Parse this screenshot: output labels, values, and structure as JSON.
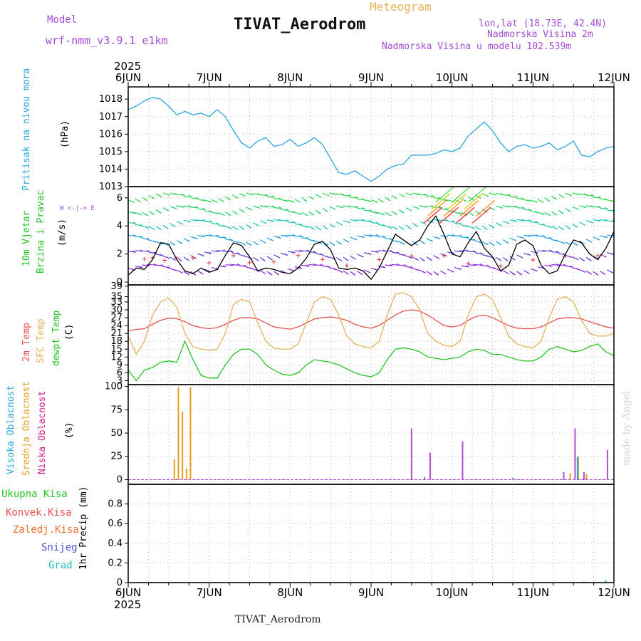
{
  "header": {
    "meteogram": "Meteogram",
    "model_label": "Model",
    "model_name": "wrf-nmm_v3.9.1 e1km",
    "station": "TIVAT_Aerodrom",
    "lonlat": "lon,lat (18.73E, 42.4N)",
    "elev": "Nadmorska Visina 2m",
    "model_elev": "Nadmorska Visina u modelu 102.539m",
    "footer_station": "TIVAT_Aerodrom",
    "credit": "made by Angel"
  },
  "time_axis": {
    "year": "2025",
    "labels": [
      "6JUN",
      "7JUN",
      "8JUN",
      "9JUN",
      "10JUN",
      "11JUN",
      "12JUN"
    ]
  },
  "panels": {
    "pressure": {
      "label": "Pritisak na nivou mora",
      "unit": "(hPa)"
    },
    "wind": {
      "label1": "10m Vjetar",
      "label2": "Brzina i Pravac",
      "unit": "(m/s)",
      "compass": "W <-|-> E"
    },
    "temp": {
      "label1": "2m Temp",
      "label2": "SFC Temp",
      "label3": "dewpt Temp",
      "unit": "(C)"
    },
    "cloud": {
      "label1": "Visoka Oblacnost",
      "label2": "Srednja Oblacnost",
      "label3": "Niska Oblacnost",
      "unit": "(%)"
    },
    "precip": {
      "legend": [
        "Ukupna Kisa",
        "Konvek.Kisa",
        "Zaledj.Kisa",
        "Snijeg",
        "Grad"
      ],
      "unit": "1hr Precip (mm)"
    }
  },
  "chart_data": [
    {
      "type": "line",
      "title": "Pritisak na nivou mora",
      "ylabel": "(hPa)",
      "x_days": [
        0,
        0.1,
        0.2,
        0.3,
        0.4,
        0.5,
        0.6,
        0.7,
        0.8,
        0.9,
        1.0,
        1.1,
        1.2,
        1.3,
        1.4,
        1.5,
        1.6,
        1.7,
        1.8,
        1.9,
        2.0,
        2.1,
        2.2,
        2.3,
        2.4,
        2.5,
        2.6,
        2.7,
        2.8,
        2.9,
        3.0,
        3.1,
        3.2,
        3.3,
        3.4,
        3.5,
        3.6,
        3.7,
        3.8,
        3.9,
        4.0,
        4.1,
        4.2,
        4.3,
        4.4,
        4.5,
        4.6,
        4.7,
        4.8,
        4.9,
        5.0,
        5.1,
        5.2,
        5.3,
        5.4,
        5.5,
        5.6,
        5.7,
        5.8,
        5.9,
        6.0
      ],
      "values": [
        1017.4,
        1017.6,
        1017.9,
        1018.1,
        1018.0,
        1017.6,
        1017.1,
        1017.3,
        1017.1,
        1017.2,
        1017.0,
        1017.4,
        1017.0,
        1016.2,
        1015.5,
        1015.2,
        1015.6,
        1015.8,
        1015.3,
        1015.4,
        1015.7,
        1015.3,
        1015.5,
        1015.8,
        1015.4,
        1014.6,
        1013.8,
        1013.7,
        1013.9,
        1013.6,
        1013.3,
        1013.6,
        1014.0,
        1014.2,
        1014.3,
        1014.8,
        1014.8,
        1014.8,
        1014.9,
        1015.1,
        1015.0,
        1015.2,
        1015.9,
        1016.3,
        1016.7,
        1016.2,
        1015.5,
        1015.0,
        1015.3,
        1015.4,
        1015.2,
        1015.3,
        1015.5,
        1015.1,
        1015.3,
        1015.6,
        1014.8,
        1014.7,
        1015.0,
        1015.2,
        1015.3
      ],
      "color": "#2aa6dc",
      "ylim": [
        1013,
        1018.7
      ],
      "yticks": [
        1013,
        1014,
        1015,
        1016,
        1017,
        1018
      ]
    },
    {
      "type": "line",
      "title": "10m Vjetar Brzina i Pravac",
      "ylabel": "(m/s)",
      "x_days": [
        0,
        0.1,
        0.2,
        0.3,
        0.4,
        0.5,
        0.6,
        0.7,
        0.8,
        0.9,
        1.0,
        1.1,
        1.2,
        1.3,
        1.4,
        1.5,
        1.6,
        1.7,
        1.8,
        1.9,
        2.0,
        2.1,
        2.2,
        2.3,
        2.4,
        2.5,
        2.6,
        2.7,
        2.8,
        2.9,
        3.0,
        3.1,
        3.2,
        3.3,
        3.4,
        3.5,
        3.6,
        3.7,
        3.8,
        3.9,
        4.0,
        4.1,
        4.2,
        4.3,
        4.4,
        4.5,
        4.6,
        4.7,
        4.8,
        4.9,
        5.0,
        5.1,
        5.2,
        5.3,
        5.4,
        5.5,
        5.6,
        5.7,
        5.8,
        5.9,
        6.0
      ],
      "values": [
        0.5,
        1.0,
        0.9,
        1.6,
        2.8,
        2.7,
        1.6,
        0.8,
        0.6,
        1.0,
        0.7,
        0.9,
        1.9,
        2.8,
        2.6,
        1.8,
        0.8,
        1.0,
        0.9,
        0.7,
        0.6,
        1.0,
        1.7,
        2.7,
        2.9,
        2.3,
        1.0,
        0.9,
        1.0,
        0.8,
        0.2,
        1.0,
        2.2,
        3.4,
        3.0,
        2.6,
        3.0,
        4.0,
        4.7,
        3.4,
        2.0,
        1.8,
        2.8,
        3.6,
        2.4,
        1.8,
        0.8,
        1.2,
        2.7,
        3.0,
        2.6,
        1.2,
        0.6,
        0.8,
        2.0,
        3.0,
        2.8,
        2.0,
        1.6,
        2.4,
        3.6
      ],
      "color": "#000000",
      "ylim": [
        -0.2,
        6.8
      ],
      "yticks": [
        0,
        2,
        4,
        6
      ]
    },
    {
      "type": "line",
      "title": "2m Temp / SFC Temp / dewpt Temp",
      "ylabel": "(C)",
      "x_days": [
        0,
        0.1,
        0.2,
        0.3,
        0.4,
        0.5,
        0.6,
        0.7,
        0.8,
        0.9,
        1.0,
        1.1,
        1.2,
        1.3,
        1.4,
        1.5,
        1.6,
        1.7,
        1.8,
        1.9,
        2.0,
        2.1,
        2.2,
        2.3,
        2.4,
        2.5,
        2.6,
        2.7,
        2.8,
        2.9,
        3.0,
        3.1,
        3.2,
        3.3,
        3.4,
        3.5,
        3.6,
        3.7,
        3.8,
        3.9,
        4.0,
        4.1,
        4.2,
        4.3,
        4.4,
        4.5,
        4.6,
        4.7,
        4.8,
        4.9,
        5.0,
        5.1,
        5.2,
        5.3,
        5.4,
        5.5,
        5.6,
        5.7,
        5.8,
        5.9,
        6.0
      ],
      "series": [
        {
          "name": "2m Temp",
          "color": "#e85050",
          "values": [
            22,
            22.5,
            22.8,
            24.5,
            26,
            26.8,
            26.6,
            25.5,
            24,
            23.2,
            22.8,
            23.2,
            24.5,
            26,
            27,
            27,
            26.5,
            25,
            23.5,
            23,
            22.6,
            23.5,
            25,
            26.5,
            27,
            27.3,
            26.8,
            26,
            24.5,
            23.5,
            23,
            24,
            26,
            28,
            29.5,
            30,
            29.5,
            28,
            26,
            24,
            23.5,
            24,
            26,
            27.5,
            28,
            27,
            25.5,
            24,
            23,
            22.8,
            22.8,
            23.5,
            25,
            26.5,
            27,
            27,
            26.5,
            25.5,
            24.5,
            23.5,
            23
          ]
        },
        {
          "name": "SFC Temp",
          "color": "#e6b25a",
          "values": [
            20,
            13,
            18,
            28,
            33,
            34.5,
            31,
            21,
            16,
            15,
            14.5,
            15,
            21,
            32,
            34,
            33,
            25,
            18,
            15.5,
            15,
            15,
            17,
            25,
            33,
            35,
            34,
            28,
            20,
            17,
            16,
            15.5,
            18,
            28,
            36,
            36.5,
            35,
            30,
            21,
            18,
            16.5,
            16,
            18,
            28,
            35,
            36,
            34,
            27,
            20,
            17,
            16,
            15.5,
            18,
            27,
            34,
            35,
            33,
            26,
            21,
            20,
            20,
            21
          ]
        },
        {
          "name": "dewpt Temp",
          "color": "#22c422",
          "values": [
            7,
            3,
            7,
            8,
            10,
            10.5,
            10,
            18,
            11,
            5,
            4,
            4,
            9,
            13,
            15,
            15,
            13,
            9,
            7,
            5.5,
            5,
            6,
            9,
            11,
            10.5,
            10,
            9,
            7.5,
            6,
            5,
            4.5,
            6,
            11,
            15,
            15.5,
            15,
            14,
            12,
            11.5,
            11,
            11.5,
            12,
            14,
            15,
            14.5,
            13,
            13,
            12,
            11,
            10.5,
            10.5,
            12,
            15,
            16,
            15,
            14,
            14.5,
            16,
            17,
            14,
            12.5
          ]
        }
      ],
      "ylim": [
        1.5,
        39.5
      ],
      "yticks": [
        3,
        6,
        9,
        12,
        15,
        18,
        21,
        24,
        27,
        30,
        33,
        35,
        39
      ]
    },
    {
      "type": "bar",
      "title": "Visoka / Srednja / Niska Oblacnost",
      "ylabel": "(%)",
      "ylim": [
        -5,
        102
      ],
      "yticks": [
        0,
        25,
        50,
        75,
        100
      ],
      "series": [
        {
          "name": "Srednja Oblacnost",
          "color": "#e6a020",
          "bars": [
            [
              0.57,
              22
            ],
            [
              0.62,
              99
            ],
            [
              0.67,
              73
            ],
            [
              0.72,
              12
            ],
            [
              0.77,
              99
            ],
            [
              5.46,
              7
            ],
            [
              5.56,
              25
            ],
            [
              5.66,
              6
            ]
          ]
        },
        {
          "name": "Niska Oblacnost",
          "color": "#b050c8",
          "bars": [
            [
              3.5,
              55
            ],
            [
              3.73,
              29
            ],
            [
              4.13,
              41
            ],
            [
              5.38,
              8
            ],
            [
              5.52,
              55
            ],
            [
              5.63,
              8
            ],
            [
              5.92,
              32
            ]
          ]
        },
        {
          "name": "Visoka Oblacnost",
          "color": "#2aa6dc",
          "bars": [
            [
              3.66,
              3
            ],
            [
              4.75,
              2
            ],
            [
              5.55,
              24
            ]
          ]
        }
      ]
    },
    {
      "type": "bar",
      "title": "1hr Precip",
      "ylabel": "1hr Precip (mm)",
      "ylim": [
        0,
        1.0
      ],
      "yticks": [
        0,
        0.2,
        0.4,
        0.6,
        0.8
      ],
      "series": [
        {
          "name": "Ukupna Kisa",
          "color": "#22c422",
          "bars": [
            [
              5.63,
              0.01
            ],
            [
              5.9,
              0.02
            ]
          ]
        }
      ]
    }
  ]
}
